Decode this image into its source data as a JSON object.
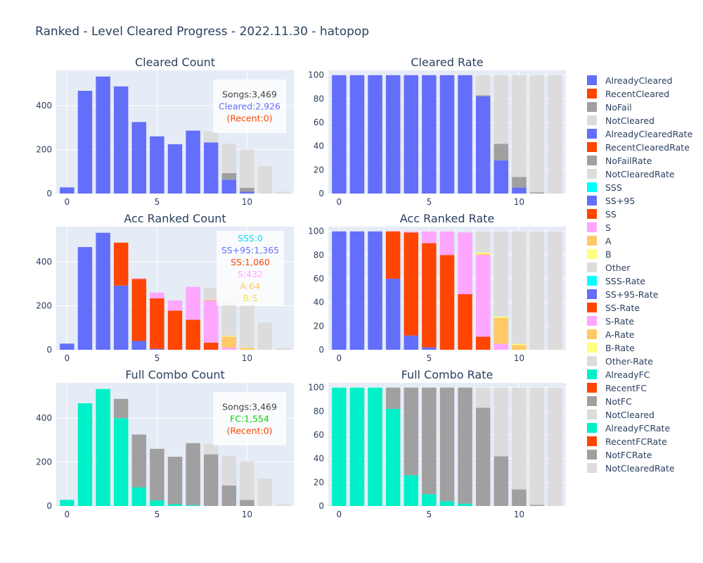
{
  "page_title": "Ranked - Level Cleared Progress - 2022.11.30 - hatopop",
  "colors": {
    "blue": "#636efa",
    "red": "#ff4500",
    "gray": "#a0a0a0",
    "lightgray": "#dcdcdc",
    "cyan": "#00ffff",
    "pink": "#ffa6ff",
    "orange": "#ffc966",
    "yellow": "#ffff80",
    "teal": "#00f0c8",
    "green": "#00d400",
    "plot_bg": "#e5ecf6"
  },
  "legend": [
    {
      "label": "AlreadyCleared",
      "color": "#636efa"
    },
    {
      "label": "RecentCleared",
      "color": "#ff4500"
    },
    {
      "label": "NoFail",
      "color": "#a0a0a0"
    },
    {
      "label": "NotCleared",
      "color": "#dcdcdc"
    },
    {
      "label": "AlreadyClearedRate",
      "color": "#636efa"
    },
    {
      "label": "RecentClearedRate",
      "color": "#ff4500"
    },
    {
      "label": "NoFailRate",
      "color": "#a0a0a0"
    },
    {
      "label": "NotClearedRate",
      "color": "#dcdcdc"
    },
    {
      "label": "SSS",
      "color": "#00ffff"
    },
    {
      "label": "SS+95",
      "color": "#636efa"
    },
    {
      "label": "SS",
      "color": "#ff4500"
    },
    {
      "label": "S",
      "color": "#ffa6ff"
    },
    {
      "label": "A",
      "color": "#ffc966"
    },
    {
      "label": "B",
      "color": "#ffff80"
    },
    {
      "label": "Other",
      "color": "#dcdcdc"
    },
    {
      "label": "SSS-Rate",
      "color": "#00ffff"
    },
    {
      "label": "SS+95-Rate",
      "color": "#636efa"
    },
    {
      "label": "SS-Rate",
      "color": "#ff4500"
    },
    {
      "label": "S-Rate",
      "color": "#ffa6ff"
    },
    {
      "label": "A-Rate",
      "color": "#ffc966"
    },
    {
      "label": "B-Rate",
      "color": "#ffff80"
    },
    {
      "label": "Other-Rate",
      "color": "#dcdcdc"
    },
    {
      "label": "AlreadyFC",
      "color": "#00f0c8"
    },
    {
      "label": "RecentFC",
      "color": "#ff4500"
    },
    {
      "label": "NotFC",
      "color": "#a0a0a0"
    },
    {
      "label": "NotCleared",
      "color": "#dcdcdc"
    },
    {
      "label": "AlreadyFCRate",
      "color": "#00f0c8"
    },
    {
      "label": "RecentFCRate",
      "color": "#ff4500"
    },
    {
      "label": "NotFCRate",
      "color": "#a0a0a0"
    },
    {
      "label": "NotClearedRate",
      "color": "#dcdcdc"
    }
  ],
  "chart_data": [
    {
      "id": "cleared-count",
      "type": "bar",
      "barmode": "stack",
      "title": "Cleared Count",
      "x": [
        0,
        1,
        2,
        3,
        4,
        5,
        6,
        7,
        8,
        9,
        10,
        11,
        12
      ],
      "xticks": [
        0,
        5,
        10
      ],
      "ylim": [
        0,
        560
      ],
      "yticks": [
        0,
        200,
        400
      ],
      "series": [
        {
          "name": "AlreadyCleared",
          "color": "#636efa",
          "values": [
            28,
            467,
            532,
            487,
            325,
            260,
            224,
            286,
            232,
            63,
            8,
            0,
            0
          ]
        },
        {
          "name": "RecentCleared",
          "color": "#ff4500",
          "values": [
            0,
            0,
            0,
            0,
            0,
            0,
            0,
            0,
            0,
            0,
            0,
            0,
            0
          ]
        },
        {
          "name": "NoFail",
          "color": "#a0a0a0",
          "values": [
            0,
            0,
            0,
            0,
            0,
            0,
            0,
            0,
            0,
            30,
            18,
            0,
            0
          ]
        },
        {
          "name": "NotCleared",
          "color": "#dcdcdc",
          "values": [
            0,
            0,
            0,
            0,
            0,
            0,
            0,
            0,
            50,
            134,
            174,
            124,
            8
          ]
        }
      ],
      "annotation": [
        {
          "text": "Songs:3,469",
          "color": "#444444"
        },
        {
          "text": "Cleared:2,926",
          "color": "#636efa"
        },
        {
          "text": "(Recent:0)",
          "color": "#ff4500"
        }
      ]
    },
    {
      "id": "cleared-rate",
      "type": "bar",
      "barmode": "stack",
      "title": "Cleared Rate",
      "x": [
        0,
        1,
        2,
        3,
        4,
        5,
        6,
        7,
        8,
        9,
        10,
        11,
        12
      ],
      "xticks": [
        0,
        5,
        10
      ],
      "ylim": [
        0,
        104
      ],
      "yticks": [
        0,
        20,
        40,
        60,
        80,
        100
      ],
      "series": [
        {
          "name": "AlreadyClearedRate",
          "color": "#636efa",
          "values": [
            100,
            100,
            100,
            100,
            100,
            100,
            100,
            100,
            82,
            28,
            5,
            0,
            0
          ]
        },
        {
          "name": "RecentClearedRate",
          "color": "#ff4500",
          "values": [
            0,
            0,
            0,
            0,
            0,
            0,
            0,
            0,
            0,
            0,
            0,
            0,
            0
          ]
        },
        {
          "name": "NoFailRate",
          "color": "#a0a0a0",
          "values": [
            0,
            0,
            0,
            0,
            0,
            0,
            0,
            0,
            1,
            14,
            9,
            1,
            0
          ]
        },
        {
          "name": "NotClearedRate",
          "color": "#dcdcdc",
          "values": [
            0,
            0,
            0,
            0,
            0,
            0,
            0,
            0,
            17,
            58,
            86,
            99,
            100
          ]
        }
      ]
    },
    {
      "id": "acc-ranked-count",
      "type": "bar",
      "barmode": "stack",
      "title": "Acc Ranked Count",
      "x": [
        0,
        1,
        2,
        3,
        4,
        5,
        6,
        7,
        8,
        9,
        10,
        11,
        12
      ],
      "xticks": [
        0,
        5,
        10
      ],
      "ylim": [
        0,
        560
      ],
      "yticks": [
        0,
        200,
        400
      ],
      "series": [
        {
          "name": "SSS",
          "color": "#00ffff",
          "values": [
            0,
            0,
            0,
            0,
            0,
            0,
            0,
            0,
            0,
            0,
            0,
            0,
            0
          ]
        },
        {
          "name": "SS+95",
          "color": "#636efa",
          "values": [
            28,
            467,
            532,
            292,
            40,
            4,
            0,
            0,
            0,
            0,
            0,
            0,
            0
          ]
        },
        {
          "name": "SS",
          "color": "#ff4500",
          "values": [
            0,
            0,
            0,
            195,
            282,
            230,
            178,
            136,
            32,
            0,
            0,
            0,
            0
          ]
        },
        {
          "name": "S",
          "color": "#ffa6ff",
          "values": [
            0,
            0,
            0,
            0,
            3,
            26,
            46,
            150,
            192,
            10,
            0,
            0,
            0
          ]
        },
        {
          "name": "A",
          "color": "#ffc966",
          "values": [
            0,
            0,
            0,
            0,
            0,
            0,
            0,
            0,
            3,
            50,
            8,
            0,
            0
          ]
        },
        {
          "name": "B",
          "color": "#ffff80",
          "values": [
            0,
            0,
            0,
            0,
            0,
            0,
            0,
            0,
            1,
            3,
            1,
            0,
            0
          ]
        },
        {
          "name": "Other",
          "color": "#dcdcdc",
          "values": [
            0,
            0,
            0,
            0,
            0,
            0,
            0,
            0,
            54,
            164,
            191,
            124,
            8
          ]
        }
      ],
      "annotation": [
        {
          "text": "SSS:0",
          "color": "#19d3f3"
        },
        {
          "text": "SS+95:1,365",
          "color": "#636efa"
        },
        {
          "text": "SS:1,060",
          "color": "#ff4500"
        },
        {
          "text": "S:432",
          "color": "#ffa6ff"
        },
        {
          "text": "A:64",
          "color": "#ffc966"
        },
        {
          "text": "B:5",
          "color": "#f0e050"
        }
      ]
    },
    {
      "id": "acc-ranked-rate",
      "type": "bar",
      "barmode": "stack",
      "title": "Acc Ranked Rate",
      "x": [
        0,
        1,
        2,
        3,
        4,
        5,
        6,
        7,
        8,
        9,
        10,
        11,
        12
      ],
      "xticks": [
        0,
        5,
        10
      ],
      "ylim": [
        0,
        104
      ],
      "yticks": [
        0,
        20,
        40,
        60,
        80,
        100
      ],
      "series": [
        {
          "name": "SSS-Rate",
          "color": "#00ffff",
          "values": [
            0,
            0,
            0,
            0,
            0,
            0,
            0,
            0,
            0,
            0,
            0,
            0,
            0
          ]
        },
        {
          "name": "SS+95-Rate",
          "color": "#636efa",
          "values": [
            100,
            100,
            100,
            60,
            12,
            2,
            0,
            0,
            0,
            0,
            0,
            0,
            0
          ]
        },
        {
          "name": "SS-Rate",
          "color": "#ff4500",
          "values": [
            0,
            0,
            0,
            40,
            87,
            88,
            80,
            47,
            11,
            0,
            0,
            0,
            0
          ]
        },
        {
          "name": "S-Rate",
          "color": "#ffa6ff",
          "values": [
            0,
            0,
            0,
            0,
            1,
            10,
            20,
            52,
            69,
            5,
            0,
            0,
            0
          ]
        },
        {
          "name": "A-Rate",
          "color": "#ffc966",
          "values": [
            0,
            0,
            0,
            0,
            0,
            0,
            0,
            0,
            1,
            22,
            4,
            0,
            0
          ]
        },
        {
          "name": "B-Rate",
          "color": "#ffff80",
          "values": [
            0,
            0,
            0,
            0,
            0,
            0,
            0,
            0,
            1,
            1,
            1,
            0,
            0
          ]
        },
        {
          "name": "Other-Rate",
          "color": "#dcdcdc",
          "values": [
            0,
            0,
            0,
            0,
            0,
            0,
            0,
            1,
            18,
            72,
            95,
            100,
            100
          ]
        }
      ]
    },
    {
      "id": "full-combo-count",
      "type": "bar",
      "barmode": "stack",
      "title": "Full Combo Count",
      "x": [
        0,
        1,
        2,
        3,
        4,
        5,
        6,
        7,
        8,
        9,
        10,
        11,
        12
      ],
      "xticks": [
        0,
        5,
        10
      ],
      "ylim": [
        0,
        560
      ],
      "yticks": [
        0,
        200,
        400
      ],
      "series": [
        {
          "name": "AlreadyFC",
          "color": "#00f0c8",
          "values": [
            28,
            467,
            532,
            399,
            85,
            25,
            8,
            4,
            0,
            0,
            0,
            0,
            0
          ]
        },
        {
          "name": "RecentFC",
          "color": "#ff4500",
          "values": [
            0,
            0,
            0,
            0,
            0,
            0,
            0,
            0,
            0,
            0,
            0,
            0,
            0
          ]
        },
        {
          "name": "NotFC",
          "color": "#a0a0a0",
          "values": [
            0,
            0,
            0,
            88,
            240,
            235,
            216,
            282,
            235,
            93,
            28,
            0,
            0
          ]
        },
        {
          "name": "NotCleared",
          "color": "#dcdcdc",
          "values": [
            0,
            0,
            0,
            0,
            0,
            0,
            0,
            0,
            47,
            134,
            174,
            124,
            8
          ]
        }
      ],
      "annotation": [
        {
          "text": "Songs:3,469",
          "color": "#444444"
        },
        {
          "text": "FC:1,554",
          "color": "#00d400"
        },
        {
          "text": "(Recent:0)",
          "color": "#ff4500"
        }
      ]
    },
    {
      "id": "full-combo-rate",
      "type": "bar",
      "barmode": "stack",
      "title": "Full Combo Rate",
      "x": [
        0,
        1,
        2,
        3,
        4,
        5,
        6,
        7,
        8,
        9,
        10,
        11,
        12
      ],
      "xticks": [
        0,
        5,
        10
      ],
      "ylim": [
        0,
        104
      ],
      "yticks": [
        0,
        20,
        40,
        60,
        80,
        100
      ],
      "series": [
        {
          "name": "AlreadyFCRate",
          "color": "#00f0c8",
          "values": [
            100,
            100,
            100,
            82,
            26,
            10,
            4,
            2,
            0,
            0,
            0,
            0,
            0
          ]
        },
        {
          "name": "RecentFCRate",
          "color": "#ff4500",
          "values": [
            0,
            0,
            0,
            0,
            0,
            0,
            0,
            0,
            0,
            0,
            0,
            0,
            0
          ]
        },
        {
          "name": "NotFCRate",
          "color": "#a0a0a0",
          "values": [
            0,
            0,
            0,
            18,
            74,
            90,
            96,
            98,
            83,
            42,
            14,
            1,
            0
          ]
        },
        {
          "name": "NotClearedRate",
          "color": "#dcdcdc",
          "values": [
            0,
            0,
            0,
            0,
            0,
            0,
            0,
            0,
            17,
            58,
            86,
            99,
            100
          ]
        }
      ]
    }
  ]
}
